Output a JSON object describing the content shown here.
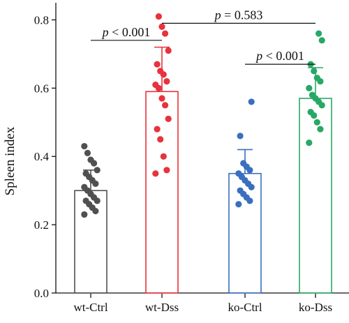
{
  "chart_data": {
    "type": "bar",
    "ylabel": "Spleen index",
    "xlabel": "",
    "ylim": [
      0,
      0.85
    ],
    "yticks": [
      0.0,
      0.2,
      0.4,
      0.6,
      0.8
    ],
    "ytick_labels": [
      "0.0",
      "0.2",
      "0.4",
      "0.6",
      "0.8"
    ],
    "categories": [
      "wt-Ctrl",
      "wt-Dss",
      "ko-Ctrl",
      "ko-Dss"
    ],
    "values": [
      0.3,
      0.59,
      0.35,
      0.57
    ],
    "error_upper": [
      0.36,
      0.72,
      0.42,
      0.66
    ],
    "colors": [
      "#505050",
      "#e8323c",
      "#3a6fbf",
      "#28a865"
    ],
    "points": [
      [
        0.23,
        0.24,
        0.25,
        0.26,
        0.27,
        0.27,
        0.28,
        0.29,
        0.3,
        0.31,
        0.32,
        0.33,
        0.34,
        0.35,
        0.36,
        0.38,
        0.39,
        0.41,
        0.43
      ],
      [
        0.35,
        0.36,
        0.4,
        0.45,
        0.48,
        0.51,
        0.55,
        0.57,
        0.6,
        0.61,
        0.62,
        0.64,
        0.65,
        0.67,
        0.71,
        0.76,
        0.78,
        0.81
      ],
      [
        0.26,
        0.27,
        0.28,
        0.29,
        0.3,
        0.31,
        0.32,
        0.33,
        0.34,
        0.35,
        0.36,
        0.37,
        0.38,
        0.46,
        0.56
      ],
      [
        0.44,
        0.48,
        0.5,
        0.52,
        0.53,
        0.55,
        0.56,
        0.57,
        0.58,
        0.6,
        0.62,
        0.63,
        0.65,
        0.67,
        0.74,
        0.76
      ]
    ],
    "annotations": [
      {
        "from": 0,
        "to": 1,
        "y": 0.74,
        "label_italic": "p",
        "label_rest": " < 0.001"
      },
      {
        "from": 1,
        "to": 3,
        "y": 0.79,
        "label_italic": "p",
        "label_rest": " = 0.583"
      },
      {
        "from": 2,
        "to": 3,
        "y": 0.67,
        "label_italic": "p",
        "label_rest": " < 0.001"
      }
    ]
  }
}
